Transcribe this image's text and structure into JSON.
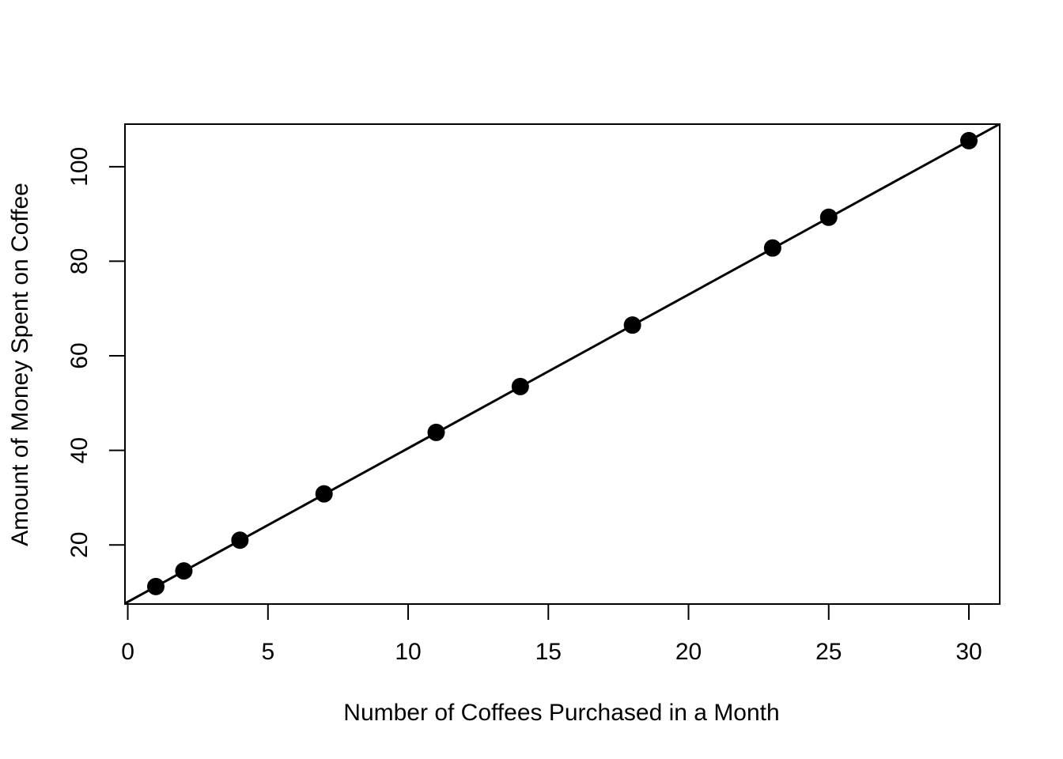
{
  "chart_data": {
    "type": "scatter",
    "title": "",
    "xlabel": "Number of Coffees Purchased in a Month",
    "ylabel": "Amount of Money Spent on Coffee",
    "xlim": [
      -0.1,
      31.1
    ],
    "ylim": [
      7.5,
      109
    ],
    "x_ticks": [
      0,
      5,
      10,
      15,
      20,
      25,
      30
    ],
    "y_ticks": [
      20,
      40,
      60,
      80,
      100
    ],
    "grid": false,
    "legend": "none",
    "series": [
      {
        "points": [
          {
            "x": 1,
            "y": 11.2
          },
          {
            "x": 2,
            "y": 14.5
          },
          {
            "x": 4,
            "y": 21.0
          },
          {
            "x": 7,
            "y": 30.8
          },
          {
            "x": 11,
            "y": 43.8
          },
          {
            "x": 14,
            "y": 53.5
          },
          {
            "x": 18,
            "y": 66.5
          },
          {
            "x": 23,
            "y": 82.8
          },
          {
            "x": 25,
            "y": 89.3
          },
          {
            "x": 30,
            "y": 105.5
          }
        ]
      }
    ],
    "fit_line": {
      "slope": 3.25,
      "intercept": 7.95
    },
    "colors": {
      "points": "#000000",
      "line": "#000000",
      "axes": "#000000"
    }
  }
}
